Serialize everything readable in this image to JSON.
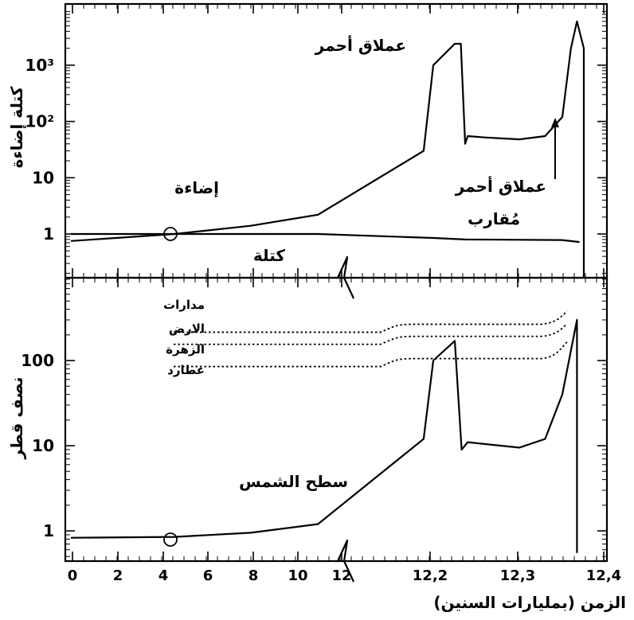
{
  "chart_data": [
    {
      "type": "line",
      "panel": "top",
      "ylabel": "كتلة إضاءة",
      "yscale": "log",
      "ylim": [
        0.45,
        7000
      ],
      "yticks": [
        {
          "value": 1,
          "label": "1"
        },
        {
          "value": 10,
          "label": "10"
        },
        {
          "value": 100,
          "label": "10²"
        },
        {
          "value": 1000,
          "label": "10³"
        }
      ],
      "series": [
        {
          "name": "إضاءة",
          "points": [
            {
              "x": 0,
              "y": 0.75
            },
            {
              "x": 2,
              "y": 0.85
            },
            {
              "x": 4.6,
              "y": 1.0
            },
            {
              "x": 8,
              "y": 1.4
            },
            {
              "x": 11,
              "y": 2.2
            },
            {
              "x": 12.1,
              "y": 30
            },
            {
              "x": 12.2,
              "y": 1000
            },
            {
              "x": 12.225,
              "y": 2400
            },
            {
              "x": 12.232,
              "y": 2400
            },
            {
              "x": 12.237,
              "y": 40
            },
            {
              "x": 12.24,
              "y": 55
            },
            {
              "x": 12.26,
              "y": 52
            },
            {
              "x": 12.3,
              "y": 48
            },
            {
              "x": 12.33,
              "y": 55
            },
            {
              "x": 12.35,
              "y": 120
            },
            {
              "x": 12.36,
              "y": 2000
            },
            {
              "x": 12.367,
              "y": 6000
            },
            {
              "x": 12.375,
              "y": 2000
            }
          ]
        },
        {
          "name": "كتلة",
          "points": [
            {
              "x": 0,
              "y": 1.0
            },
            {
              "x": 4.6,
              "y": 1.0
            },
            {
              "x": 11,
              "y": 1.0
            },
            {
              "x": 12.2,
              "y": 0.85
            },
            {
              "x": 12.237,
              "y": 0.8
            },
            {
              "x": 12.35,
              "y": 0.78
            },
            {
              "x": 12.37,
              "y": 0.72
            }
          ]
        }
      ],
      "annotations": [
        {
          "text": "عملاق أحمر"
        },
        {
          "text": "إضاءة"
        },
        {
          "text": "كتلة"
        },
        {
          "text": "عملاق أحمر"
        },
        {
          "text": "مُقارب"
        }
      ]
    },
    {
      "type": "line",
      "panel": "bottom",
      "ylabel": "نصف قطر",
      "xlabel": "الزمن (بمليارات السنين)",
      "yscale": "log",
      "ylim": [
        0.55,
        700
      ],
      "yticks": [
        {
          "value": 1,
          "label": "1"
        },
        {
          "value": 10,
          "label": "10"
        },
        {
          "value": 100,
          "label": "100"
        }
      ],
      "xticks": [
        "0",
        "2",
        "4",
        "6",
        "8",
        "10",
        "12",
        "12,2",
        "12,3",
        "12,4"
      ],
      "x_axis_break": "12",
      "series": [
        {
          "name": "سطح الشمس",
          "points": [
            {
              "x": 0,
              "y": 0.83
            },
            {
              "x": 4.6,
              "y": 0.85
            },
            {
              "x": 8,
              "y": 0.95
            },
            {
              "x": 11,
              "y": 1.2
            },
            {
              "x": 12.1,
              "y": 12
            },
            {
              "x": 12.2,
              "y": 100
            },
            {
              "x": 12.225,
              "y": 170
            },
            {
              "x": 12.233,
              "y": 9
            },
            {
              "x": 12.24,
              "y": 11
            },
            {
              "x": 12.3,
              "y": 9.5
            },
            {
              "x": 12.33,
              "y": 12
            },
            {
              "x": 12.35,
              "y": 40
            },
            {
              "x": 12.367,
              "y": 300
            },
            {
              "x": 12.367,
              "y": 0.55
            }
          ]
        }
      ],
      "orbits_title": "مدارات",
      "orbits": [
        {
          "name": "الارض",
          "y": 215,
          "y_end": 380
        },
        {
          "name": "الزهرة",
          "y": 155,
          "y_end": 270
        },
        {
          "name": "عطارد",
          "y": 85,
          "y_end": 165
        }
      ],
      "annotations": [
        {
          "text": "سطح الشمس"
        }
      ]
    }
  ]
}
